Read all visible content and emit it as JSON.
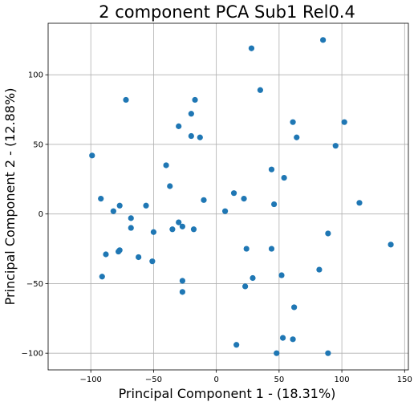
{
  "chart_data": {
    "type": "scatter",
    "title": "2 component PCA Sub1 Rel0.4",
    "xlabel": "Principal Component 1 - (18.31%)",
    "ylabel": "Principal Component 2 - (12.88%)",
    "xlim": [
      -134,
      153
    ],
    "ylim": [
      -112,
      137
    ],
    "xticks": [
      -100,
      -50,
      0,
      50,
      100,
      150
    ],
    "yticks": [
      -100,
      -50,
      0,
      50,
      100
    ],
    "xtick_labels": [
      "−100",
      "−50",
      "0",
      "50",
      "100",
      "150"
    ],
    "ytick_labels": [
      "−100",
      "−50",
      "0",
      "50",
      "100"
    ],
    "grid": true,
    "point_color": "#1f77b4",
    "series": [
      {
        "x": [
          28,
          85,
          35,
          -72,
          -20,
          -17,
          61,
          102,
          -30,
          -20,
          -13,
          64,
          95,
          -99,
          -40,
          44,
          54,
          -37,
          14,
          -92,
          22,
          -10,
          114,
          46,
          -77,
          7,
          -82,
          -56,
          -68,
          -30,
          -27,
          -35,
          -18,
          -50,
          89,
          139,
          -68,
          24,
          44,
          -77,
          -78,
          -88,
          -62,
          -51,
          82,
          29,
          52,
          -91,
          -27,
          23,
          -27,
          62,
          53,
          61,
          16,
          48,
          89
        ],
        "y": [
          119,
          125,
          89,
          82,
          72,
          82,
          66,
          66,
          63,
          56,
          55,
          55,
          49,
          42,
          35,
          32,
          26,
          20,
          15,
          11,
          11,
          10,
          8,
          7,
          6,
          2,
          2,
          6,
          -3,
          -6,
          -9,
          -11,
          -11,
          -13,
          -14,
          -22,
          -10,
          -25,
          -25,
          -26,
          -27,
          -29,
          -31,
          -34,
          -40,
          -46,
          -44,
          -45,
          -48,
          -52,
          -56,
          -67,
          -89,
          -90,
          -94,
          -100,
          -100
        ]
      }
    ]
  }
}
